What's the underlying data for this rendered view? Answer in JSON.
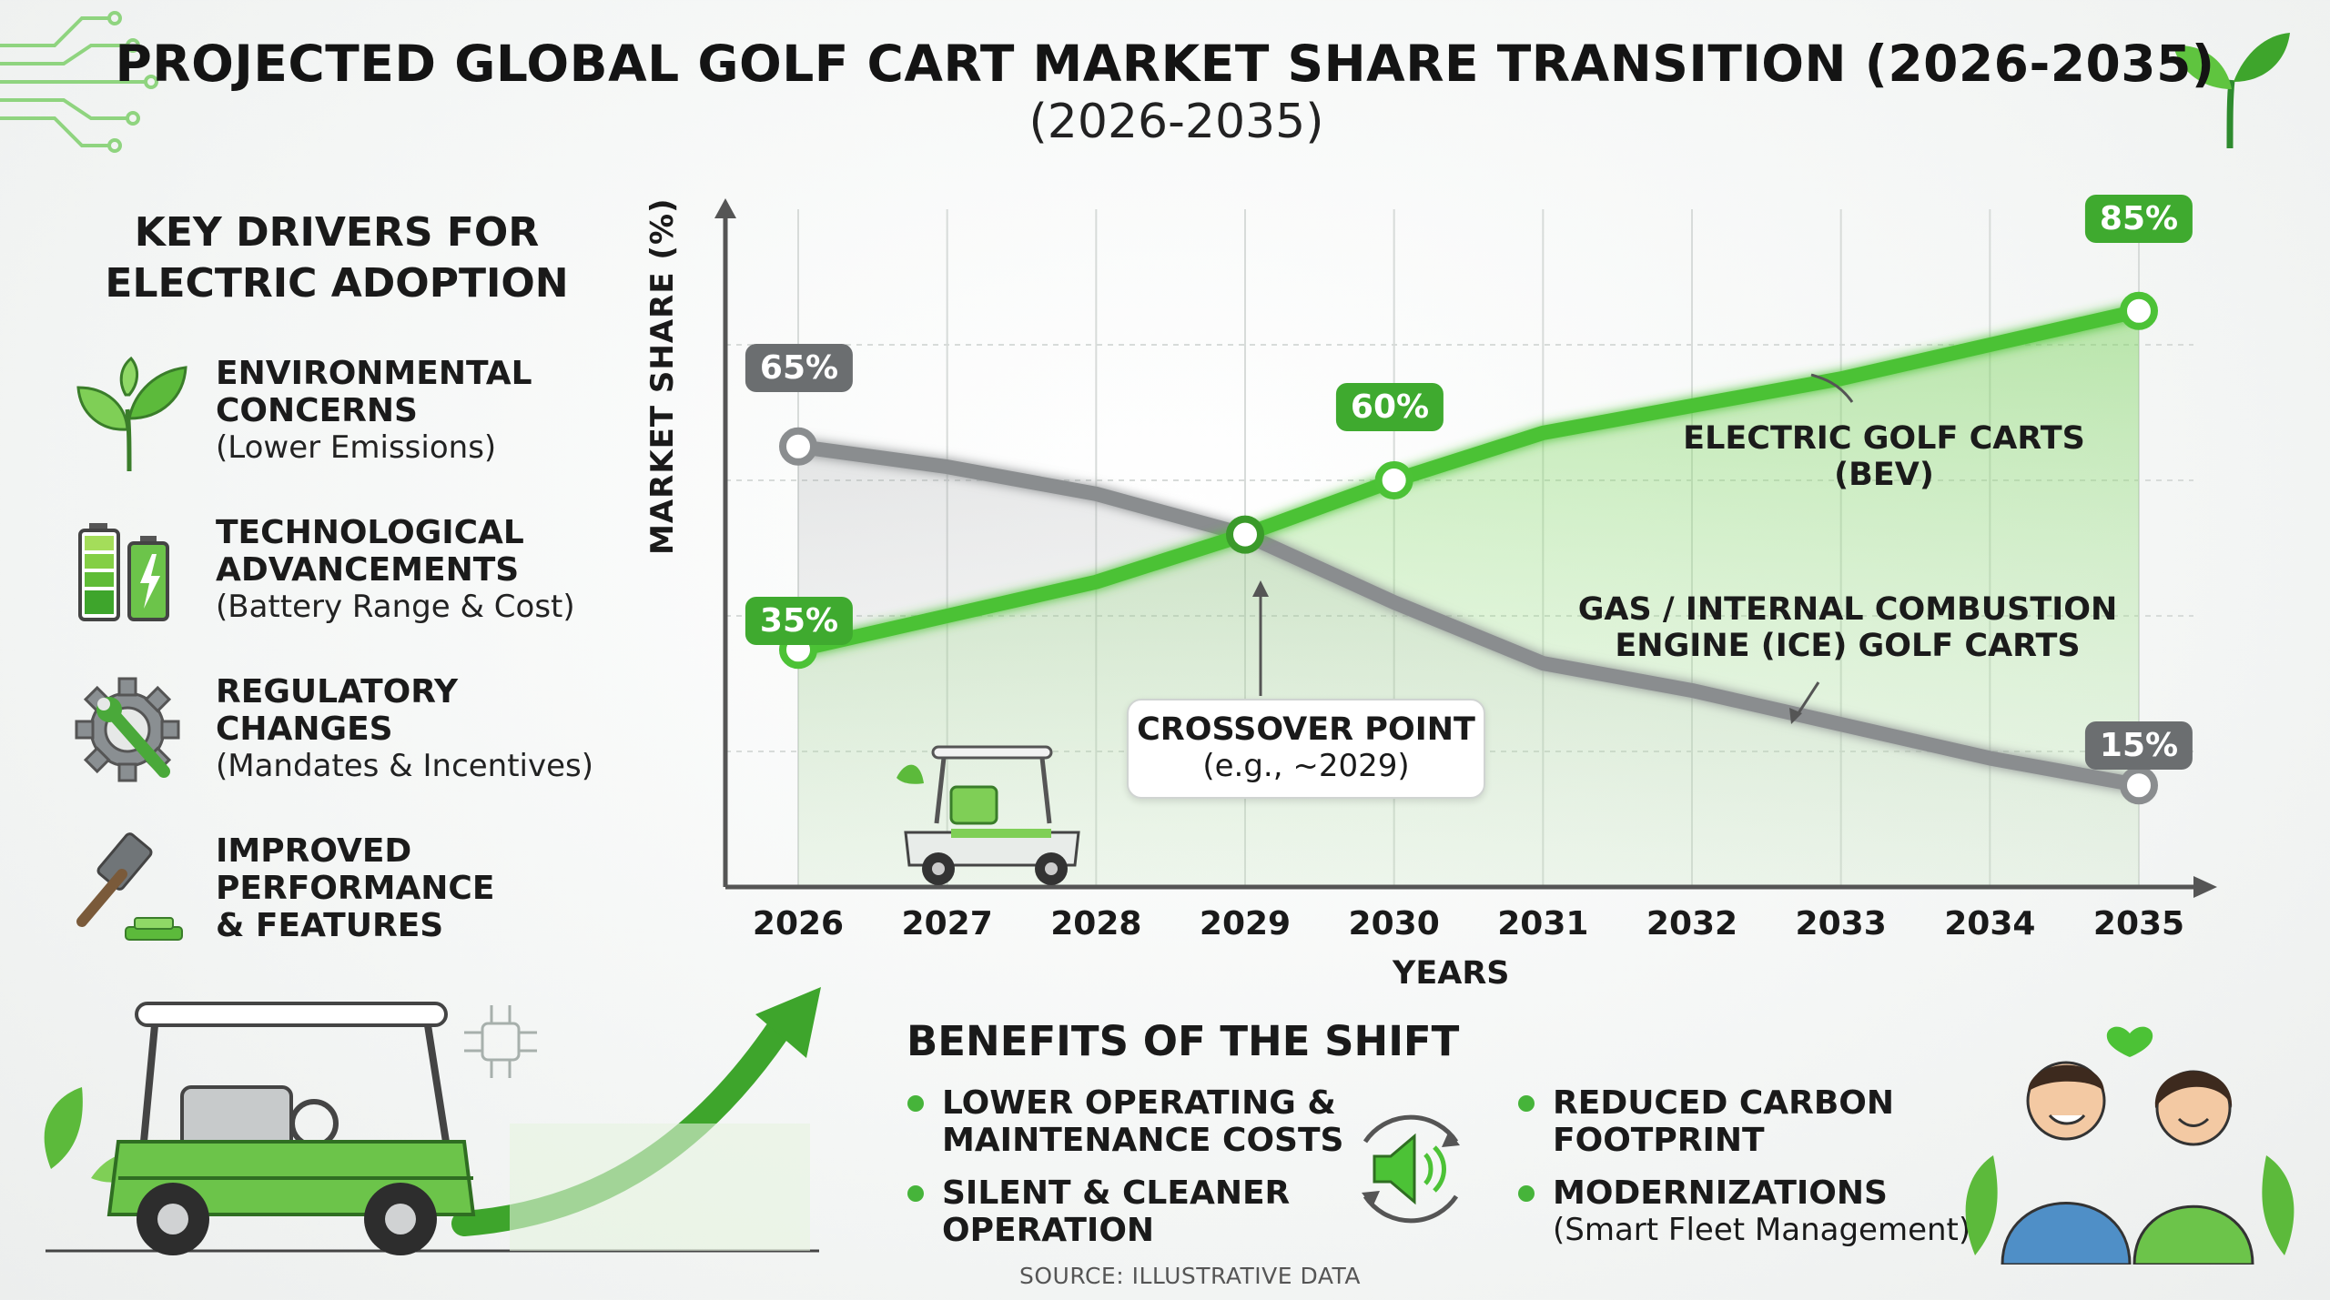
{
  "title": "PROJECTED GLOBAL GOLF CART MARKET SHARE TRANSITION (2026-2035)",
  "subtitle": "(2026-2035)",
  "drivers": {
    "title_line1": "KEY DRIVERS FOR",
    "title_line2": "ELECTRIC ADOPTION",
    "items": [
      {
        "head1": "ENVIRONMENTAL",
        "head2": "CONCERNS",
        "head3": "",
        "sub": "(Lower Emissions)",
        "icon": "leaf-icon"
      },
      {
        "head1": "TECHNOLOGICAL",
        "head2": "ADVANCEMENTS",
        "head3": "",
        "sub": "(Battery Range & Cost)",
        "icon": "battery-icon"
      },
      {
        "head1": "REGULATORY",
        "head2": "CHANGES",
        "head3": "",
        "sub": "(Mandates & Incentives)",
        "icon": "gear-wrench-icon"
      },
      {
        "head1": "IMPROVED",
        "head2": "PERFORMANCE",
        "head3": "& FEATURES",
        "sub": "",
        "icon": "gavel-icon"
      }
    ]
  },
  "chart_data": {
    "type": "line",
    "xlabel": "YEARS",
    "ylabel": "MARKET SHARE (%)",
    "x": [
      2026,
      2027,
      2028,
      2029,
      2030,
      2031,
      2032,
      2033,
      2034,
      2035
    ],
    "ylim": [
      0,
      100
    ],
    "grid": true,
    "series": [
      {
        "name": "ELECTRIC GOLF CARTS (BEV)",
        "color": "#4cc236",
        "values": [
          35,
          40,
          45,
          52,
          60,
          67,
          71,
          75,
          80,
          85
        ]
      },
      {
        "name": "GAS / INTERNAL COMBUSTION ENGINE (ICE) GOLF CARTS",
        "color": "#8a8d8f",
        "values": [
          65,
          62,
          58,
          52,
          42,
          33,
          29,
          24,
          19,
          15
        ]
      }
    ],
    "annotations": {
      "ice_start": "65%",
      "bev_start": "35%",
      "bev_2030": "60%",
      "bev_end": "85%",
      "ice_end": "15%",
      "crossover_title": "CROSSOVER POINT",
      "crossover_sub": "(e.g., ~2029)"
    }
  },
  "bev_label": "ELECTRIC GOLF CARTS (BEV)",
  "ice_label_1": "GAS / INTERNAL COMBUSTION",
  "ice_label_2": "ENGINE (ICE) GOLF CARTS",
  "benefits": {
    "title": "BENEFITS OF THE SHIFT",
    "items": [
      {
        "t1": "LOWER OPERATING &",
        "t2": "MAINTENANCE COSTS",
        "s": ""
      },
      {
        "t1": "SILENT & CLEANER",
        "t2": "OPERATION",
        "s": ""
      },
      {
        "t1": "REDUCED CARBON",
        "t2": "FOOTPRINT",
        "s": ""
      },
      {
        "t1": "MODERNIZATIONS",
        "t2": "",
        "s": "(Smart Fleet Management)"
      }
    ]
  },
  "source": "SOURCE: ILLUSTRATIVE DATA",
  "colors": {
    "green": "#3faa2f",
    "gray": "#6b6e70",
    "bev_line": "#4cc236",
    "ice_line": "#8a8d8f"
  }
}
